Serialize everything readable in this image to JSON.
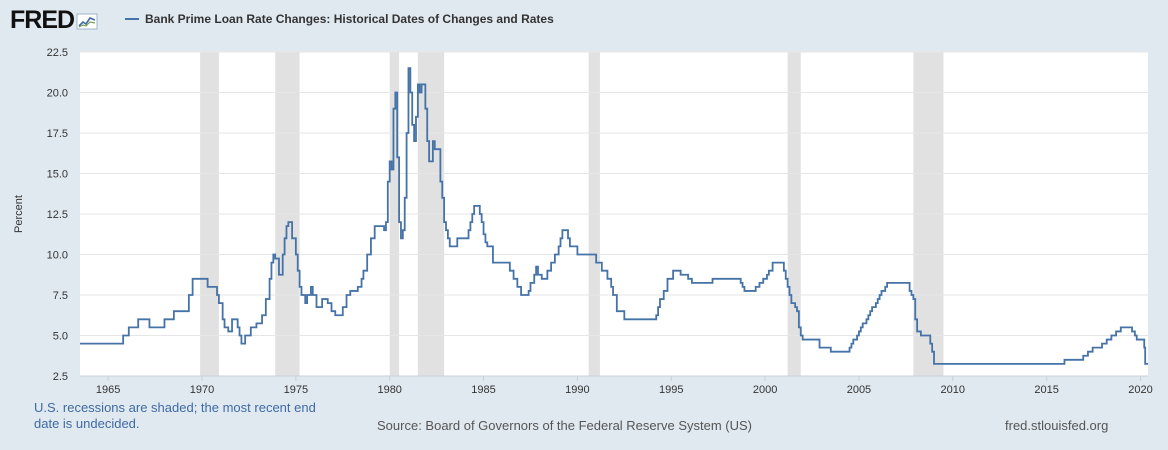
{
  "header": {
    "logo_text": "FRED",
    "legend_label": "Bank Prime Loan Rate Changes: Historical Dates of Changes and Rates"
  },
  "colors": {
    "series": "#4572a7",
    "recession": "#e1e1e1",
    "plot_bg": "#ffffff",
    "frame_bg": "#e1e9f0",
    "gridline": "#e6e6e6"
  },
  "footer": {
    "note": "U.S. recessions are shaded; the most recent end date is undecided.",
    "source": "Source: Board of Governors of the Federal Reserve System (US)",
    "url": "fred.stlouisfed.org"
  },
  "chart_data": {
    "type": "line",
    "step": true,
    "title": "",
    "xlabel": "",
    "ylabel": "Percent",
    "xlim": [
      1963.5,
      2020.4
    ],
    "ylim": [
      2.5,
      22.5
    ],
    "y_ticks": [
      "2.5",
      "5.0",
      "7.5",
      "10.0",
      "12.5",
      "15.0",
      "17.5",
      "20.0",
      "22.5"
    ],
    "x_ticks": [
      "1965",
      "1970",
      "1975",
      "1980",
      "1985",
      "1990",
      "1995",
      "2000",
      "2005",
      "2010",
      "2015",
      "2020"
    ],
    "grid": "horizontal",
    "legend": "top-left",
    "recessions": [
      [
        1969.9,
        1970.9
      ],
      [
        1973.9,
        1975.2
      ],
      [
        1980.0,
        1980.5
      ],
      [
        1981.5,
        1982.9
      ],
      [
        1990.6,
        1991.2
      ],
      [
        2001.2,
        2001.9
      ],
      [
        2007.9,
        2009.5
      ]
    ],
    "series": [
      {
        "name": "Bank Prime Loan Rate Changes: Historical Dates of Changes and Rates",
        "points": [
          [
            1963.5,
            4.5
          ],
          [
            1965.8,
            5.0
          ],
          [
            1966.1,
            5.5
          ],
          [
            1966.6,
            6.0
          ],
          [
            1967.2,
            5.5
          ],
          [
            1968.0,
            6.0
          ],
          [
            1968.5,
            6.5
          ],
          [
            1969.0,
            6.5
          ],
          [
            1969.3,
            7.5
          ],
          [
            1969.5,
            8.5
          ],
          [
            1970.2,
            8.5
          ],
          [
            1970.3,
            8.0
          ],
          [
            1970.8,
            7.5
          ],
          [
            1970.9,
            7.0
          ],
          [
            1971.1,
            6.0
          ],
          [
            1971.2,
            5.5
          ],
          [
            1971.4,
            5.25
          ],
          [
            1971.6,
            6.0
          ],
          [
            1971.9,
            5.5
          ],
          [
            1972.0,
            5.0
          ],
          [
            1972.1,
            4.5
          ],
          [
            1972.3,
            5.0
          ],
          [
            1972.6,
            5.5
          ],
          [
            1972.9,
            5.75
          ],
          [
            1973.2,
            6.25
          ],
          [
            1973.4,
            7.25
          ],
          [
            1973.6,
            8.5
          ],
          [
            1973.7,
            9.5
          ],
          [
            1973.8,
            10.0
          ],
          [
            1973.9,
            9.75
          ],
          [
            1974.1,
            8.75
          ],
          [
            1974.3,
            10.0
          ],
          [
            1974.4,
            11.0
          ],
          [
            1974.5,
            11.75
          ],
          [
            1974.6,
            12.0
          ],
          [
            1974.8,
            11.0
          ],
          [
            1975.0,
            10.0
          ],
          [
            1975.1,
            9.0
          ],
          [
            1975.2,
            8.0
          ],
          [
            1975.3,
            7.5
          ],
          [
            1975.5,
            7.0
          ],
          [
            1975.6,
            7.5
          ],
          [
            1975.8,
            8.0
          ],
          [
            1975.9,
            7.5
          ],
          [
            1976.1,
            6.75
          ],
          [
            1976.4,
            7.25
          ],
          [
            1976.7,
            7.0
          ],
          [
            1976.9,
            6.5
          ],
          [
            1977.1,
            6.25
          ],
          [
            1977.5,
            6.75
          ],
          [
            1977.7,
            7.5
          ],
          [
            1977.9,
            7.75
          ],
          [
            1978.3,
            8.0
          ],
          [
            1978.5,
            8.5
          ],
          [
            1978.6,
            9.0
          ],
          [
            1978.8,
            10.0
          ],
          [
            1979.0,
            11.0
          ],
          [
            1979.2,
            11.75
          ],
          [
            1979.7,
            11.5
          ],
          [
            1979.8,
            12.0
          ],
          [
            1979.9,
            14.5
          ],
          [
            1980.0,
            15.75
          ],
          [
            1980.1,
            15.25
          ],
          [
            1980.2,
            19.0
          ],
          [
            1980.3,
            20.0
          ],
          [
            1980.4,
            16.0
          ],
          [
            1980.5,
            12.0
          ],
          [
            1980.6,
            11.0
          ],
          [
            1980.7,
            11.5
          ],
          [
            1980.8,
            13.5
          ],
          [
            1980.9,
            17.5
          ],
          [
            1981.0,
            21.5
          ],
          [
            1981.1,
            20.0
          ],
          [
            1981.2,
            18.0
          ],
          [
            1981.3,
            17.0
          ],
          [
            1981.4,
            18.5
          ],
          [
            1981.5,
            20.5
          ],
          [
            1981.6,
            20.0
          ],
          [
            1981.7,
            20.5
          ],
          [
            1981.9,
            19.0
          ],
          [
            1982.0,
            17.0
          ],
          [
            1982.1,
            15.75
          ],
          [
            1982.3,
            17.0
          ],
          [
            1982.4,
            16.5
          ],
          [
            1982.7,
            14.5
          ],
          [
            1982.8,
            13.5
          ],
          [
            1982.9,
            12.0
          ],
          [
            1983.0,
            11.5
          ],
          [
            1983.1,
            11.0
          ],
          [
            1983.2,
            10.5
          ],
          [
            1983.6,
            11.0
          ],
          [
            1984.2,
            11.5
          ],
          [
            1984.3,
            12.0
          ],
          [
            1984.4,
            12.5
          ],
          [
            1984.5,
            13.0
          ],
          [
            1984.8,
            12.5
          ],
          [
            1984.9,
            12.0
          ],
          [
            1985.0,
            11.25
          ],
          [
            1985.1,
            10.75
          ],
          [
            1985.2,
            10.5
          ],
          [
            1985.5,
            9.5
          ],
          [
            1986.4,
            9.0
          ],
          [
            1986.6,
            8.5
          ],
          [
            1986.8,
            8.0
          ],
          [
            1987.0,
            7.5
          ],
          [
            1987.4,
            7.75
          ],
          [
            1987.5,
            8.25
          ],
          [
            1987.7,
            8.75
          ],
          [
            1987.8,
            9.25
          ],
          [
            1987.9,
            8.75
          ],
          [
            1988.1,
            8.5
          ],
          [
            1988.4,
            9.0
          ],
          [
            1988.6,
            9.5
          ],
          [
            1988.8,
            10.0
          ],
          [
            1989.0,
            10.5
          ],
          [
            1989.1,
            11.0
          ],
          [
            1989.2,
            11.5
          ],
          [
            1989.5,
            11.0
          ],
          [
            1989.6,
            10.5
          ],
          [
            1990.0,
            10.0
          ],
          [
            1990.9,
            10.0
          ],
          [
            1991.0,
            9.5
          ],
          [
            1991.3,
            9.0
          ],
          [
            1991.6,
            8.5
          ],
          [
            1991.8,
            8.0
          ],
          [
            1991.9,
            7.5
          ],
          [
            1992.1,
            6.5
          ],
          [
            1992.5,
            6.0
          ],
          [
            1994.2,
            6.25
          ],
          [
            1994.3,
            6.75
          ],
          [
            1994.4,
            7.25
          ],
          [
            1994.6,
            7.75
          ],
          [
            1994.8,
            8.5
          ],
          [
            1995.1,
            9.0
          ],
          [
            1995.5,
            8.75
          ],
          [
            1995.9,
            8.5
          ],
          [
            1996.1,
            8.25
          ],
          [
            1997.2,
            8.5
          ],
          [
            1998.7,
            8.25
          ],
          [
            1998.8,
            8.0
          ],
          [
            1998.9,
            7.75
          ],
          [
            1999.5,
            8.0
          ],
          [
            1999.7,
            8.25
          ],
          [
            1999.9,
            8.5
          ],
          [
            2000.1,
            8.75
          ],
          [
            2000.2,
            9.0
          ],
          [
            2000.4,
            9.5
          ],
          [
            2001.0,
            9.0
          ],
          [
            2001.1,
            8.5
          ],
          [
            2001.2,
            8.0
          ],
          [
            2001.3,
            7.5
          ],
          [
            2001.4,
            7.0
          ],
          [
            2001.6,
            6.75
          ],
          [
            2001.7,
            6.5
          ],
          [
            2001.8,
            5.5
          ],
          [
            2001.9,
            5.0
          ],
          [
            2002.0,
            4.75
          ],
          [
            2002.9,
            4.25
          ],
          [
            2003.5,
            4.0
          ],
          [
            2004.5,
            4.25
          ],
          [
            2004.6,
            4.5
          ],
          [
            2004.7,
            4.75
          ],
          [
            2004.9,
            5.0
          ],
          [
            2005.0,
            5.25
          ],
          [
            2005.1,
            5.5
          ],
          [
            2005.2,
            5.75
          ],
          [
            2005.4,
            6.0
          ],
          [
            2005.5,
            6.25
          ],
          [
            2005.6,
            6.5
          ],
          [
            2005.7,
            6.75
          ],
          [
            2005.9,
            7.0
          ],
          [
            2006.0,
            7.25
          ],
          [
            2006.1,
            7.5
          ],
          [
            2006.2,
            7.75
          ],
          [
            2006.4,
            8.0
          ],
          [
            2006.5,
            8.25
          ],
          [
            2007.7,
            7.75
          ],
          [
            2007.8,
            7.5
          ],
          [
            2007.9,
            7.25
          ],
          [
            2008.0,
            6.0
          ],
          [
            2008.1,
            5.25
          ],
          [
            2008.3,
            5.0
          ],
          [
            2008.8,
            4.5
          ],
          [
            2008.9,
            4.0
          ],
          [
            2009.0,
            3.25
          ],
          [
            2015.95,
            3.5
          ],
          [
            2016.95,
            3.75
          ],
          [
            2017.2,
            4.0
          ],
          [
            2017.45,
            4.25
          ],
          [
            2017.95,
            4.5
          ],
          [
            2018.2,
            4.75
          ],
          [
            2018.45,
            5.0
          ],
          [
            2018.7,
            5.25
          ],
          [
            2018.95,
            5.5
          ],
          [
            2019.55,
            5.25
          ],
          [
            2019.7,
            5.0
          ],
          [
            2019.8,
            4.75
          ],
          [
            2020.2,
            4.25
          ],
          [
            2020.25,
            3.25
          ],
          [
            2020.4,
            3.25
          ]
        ]
      }
    ]
  }
}
